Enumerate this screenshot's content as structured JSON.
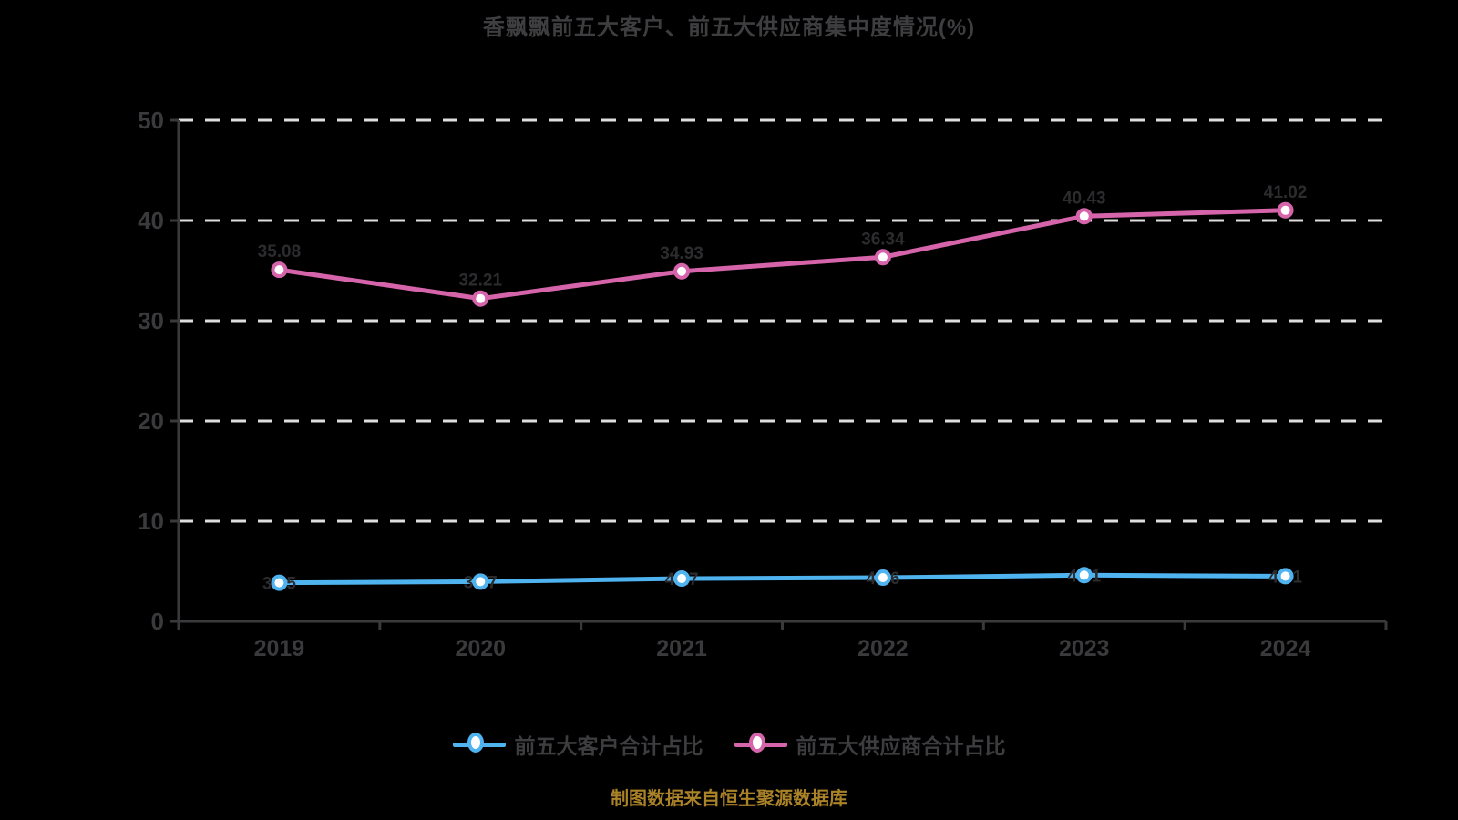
{
  "title": "香飘飘前五大客户、前五大供应商集中度情况(%)",
  "footer": "制图数据来自恒生聚源数据库",
  "colors": {
    "background": "#000000",
    "title_text": "#3e3e40",
    "axis_line": "#3a3a3c",
    "axis_label": "#3a3a3c",
    "gridline": "#dedede",
    "data_label": "#2c2c2e",
    "legend_text": "#3d3d3f",
    "footer_text": "#aa8228",
    "series_customers": "#4fb3ef",
    "series_suppliers": "#d664aa",
    "marker_fill": "#ffffff"
  },
  "chart_data": {
    "type": "line",
    "categories": [
      "2019",
      "2020",
      "2021",
      "2022",
      "2023",
      "2024"
    ],
    "series": [
      {
        "name": "前五大客户合计占比",
        "color": "#4fb3ef",
        "values": [
          3.85,
          3.97,
          4.27,
          4.36,
          4.61,
          4.51
        ],
        "label_position": "center"
      },
      {
        "name": "前五大供应商合计占比",
        "color": "#d664aa",
        "values": [
          35.08,
          32.21,
          34.93,
          36.34,
          40.43,
          41.02
        ],
        "label_position": "top"
      }
    ],
    "title": "香飘飘前五大客户、前五大供应商集中度情况(%)",
    "xlabel": "",
    "ylabel": "",
    "ylim": [
      0,
      50
    ],
    "yticks": [
      0,
      10,
      20,
      30,
      40,
      50
    ],
    "grid": "dashed-horizontal",
    "legend_position": "bottom"
  }
}
